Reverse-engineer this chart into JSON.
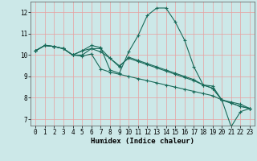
{
  "xlabel": "Humidex (Indice chaleur)",
  "background_color": "#cce8e8",
  "grid_color": "#e8a0a0",
  "line_color": "#1a6b5a",
  "xlim": [
    -0.5,
    23.5
  ],
  "ylim": [
    6.7,
    12.5
  ],
  "yticks": [
    7,
    8,
    9,
    10,
    11,
    12
  ],
  "xticks": [
    0,
    1,
    2,
    3,
    4,
    5,
    6,
    7,
    8,
    9,
    10,
    11,
    12,
    13,
    14,
    15,
    16,
    17,
    18,
    19,
    20,
    21,
    22,
    23
  ],
  "series": [
    [
      10.2,
      10.45,
      10.4,
      10.3,
      10.0,
      10.2,
      10.45,
      10.35,
      9.3,
      9.15,
      10.15,
      10.9,
      11.85,
      12.2,
      12.2,
      11.55,
      10.7,
      9.45,
      8.6,
      8.55,
      7.9,
      6.65,
      7.35,
      7.5
    ],
    [
      10.2,
      10.45,
      10.4,
      10.3,
      10.0,
      10.2,
      10.3,
      10.15,
      9.85,
      9.45,
      9.9,
      9.75,
      9.6,
      9.45,
      9.3,
      9.15,
      9.0,
      8.85,
      8.6,
      8.45,
      7.9,
      7.75,
      7.6,
      7.5
    ],
    [
      10.2,
      10.45,
      10.4,
      10.3,
      10.0,
      9.95,
      10.05,
      9.35,
      9.2,
      9.1,
      9.0,
      8.9,
      8.8,
      8.7,
      8.6,
      8.5,
      8.4,
      8.3,
      8.2,
      8.1,
      7.9,
      7.8,
      7.7,
      7.5
    ],
    [
      10.2,
      10.45,
      10.4,
      10.3,
      10.0,
      10.0,
      10.3,
      10.3,
      9.85,
      9.5,
      9.85,
      9.7,
      9.55,
      9.4,
      9.25,
      9.1,
      8.95,
      8.8,
      8.6,
      8.45,
      7.9,
      7.75,
      7.6,
      7.5
    ]
  ]
}
